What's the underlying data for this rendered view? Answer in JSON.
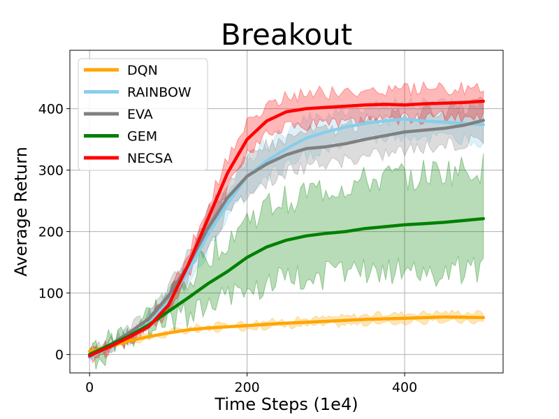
{
  "chart_data": {
    "type": "line",
    "title": "Breakout",
    "xlabel": "Time Steps (1e4)",
    "ylabel": "Average Return",
    "xlim": [
      -25,
      525
    ],
    "ylim": [
      -30,
      495
    ],
    "xticks": [
      0,
      200,
      400
    ],
    "yticks": [
      0,
      100,
      200,
      300,
      400
    ],
    "grid": true,
    "legend_position": "top-left",
    "series": [
      {
        "name": "DQN",
        "color": "#ffa500",
        "x": [
          0,
          25,
          50,
          75,
          100,
          125,
          150,
          175,
          200,
          250,
          300,
          350,
          400,
          450,
          500
        ],
        "mean": [
          5,
          13,
          22,
          29,
          35,
          40,
          43,
          45,
          47,
          51,
          54,
          57,
          59,
          61,
          60
        ],
        "lower": [
          3,
          11,
          20,
          26,
          32,
          36,
          39,
          41,
          43,
          46,
          48,
          50,
          52,
          54,
          53
        ],
        "upper": [
          7,
          15,
          24,
          32,
          38,
          44,
          47,
          50,
          52,
          56,
          60,
          64,
          67,
          69,
          68
        ]
      },
      {
        "name": "RAINBOW",
        "color": "#87ceeb",
        "x": [
          0,
          25,
          50,
          75,
          100,
          125,
          150,
          175,
          200,
          225,
          250,
          275,
          300,
          325,
          350,
          375,
          400,
          425,
          450,
          475,
          500
        ],
        "mean": [
          -5,
          12,
          30,
          50,
          85,
          135,
          195,
          245,
          290,
          315,
          335,
          352,
          362,
          370,
          376,
          380,
          383,
          380,
          378,
          376,
          374
        ],
        "lower": [
          -8,
          9,
          25,
          42,
          74,
          118,
          172,
          220,
          262,
          288,
          308,
          325,
          335,
          343,
          349,
          353,
          356,
          353,
          351,
          350,
          348
        ],
        "upper": [
          -2,
          15,
          35,
          58,
          96,
          152,
          218,
          270,
          318,
          342,
          362,
          380,
          390,
          398,
          404,
          408,
          411,
          408,
          406,
          404,
          402
        ]
      },
      {
        "name": "EVA",
        "color": "#808080",
        "x": [
          0,
          25,
          50,
          75,
          100,
          125,
          150,
          175,
          200,
          225,
          250,
          275,
          300,
          325,
          350,
          375,
          400,
          425,
          450,
          475,
          500
        ],
        "mean": [
          -3,
          15,
          35,
          58,
          95,
          145,
          205,
          255,
          290,
          310,
          325,
          335,
          338,
          343,
          350,
          356,
          362,
          365,
          368,
          373,
          381
        ],
        "lower": [
          -6,
          12,
          30,
          50,
          82,
          125,
          180,
          228,
          262,
          282,
          297,
          307,
          310,
          315,
          322,
          328,
          334,
          337,
          340,
          345,
          353
        ],
        "upper": [
          0,
          18,
          40,
          66,
          108,
          165,
          230,
          282,
          318,
          338,
          353,
          363,
          366,
          371,
          378,
          384,
          390,
          393,
          396,
          401,
          409
        ]
      },
      {
        "name": "GEM",
        "color": "#008000",
        "x": [
          0,
          25,
          50,
          75,
          100,
          125,
          150,
          175,
          200,
          225,
          250,
          275,
          300,
          325,
          350,
          375,
          400,
          425,
          450,
          475,
          500
        ],
        "mean": [
          0,
          15,
          30,
          48,
          70,
          92,
          115,
          135,
          158,
          175,
          186,
          193,
          197,
          200,
          205,
          208,
          211,
          213,
          215,
          218,
          221
        ],
        "lower": [
          -3,
          10,
          22,
          35,
          52,
          66,
          82,
          96,
          108,
          116,
          122,
          128,
          130,
          132,
          133,
          134,
          135,
          135,
          136,
          136,
          136
        ],
        "upper": [
          3,
          20,
          38,
          62,
          92,
          125,
          160,
          190,
          218,
          238,
          252,
          262,
          268,
          274,
          280,
          285,
          290,
          293,
          296,
          299,
          302
        ]
      },
      {
        "name": "NECSA",
        "color": "#ff0000",
        "x": [
          0,
          25,
          50,
          75,
          100,
          125,
          150,
          175,
          200,
          225,
          250,
          275,
          300,
          325,
          350,
          375,
          400,
          425,
          450,
          475,
          500
        ],
        "mean": [
          -2,
          12,
          28,
          45,
          80,
          145,
          220,
          295,
          350,
          380,
          395,
          400,
          402,
          404,
          406,
          407,
          406,
          408,
          409,
          410,
          412
        ],
        "lower": [
          -5,
          8,
          22,
          38,
          68,
          128,
          198,
          270,
          325,
          355,
          370,
          375,
          378,
          380,
          382,
          383,
          382,
          384,
          386,
          387,
          389
        ],
        "upper": [
          1,
          16,
          34,
          52,
          92,
          162,
          242,
          320,
          375,
          405,
          420,
          425,
          426,
          428,
          430,
          431,
          430,
          432,
          432,
          433,
          435
        ]
      }
    ]
  }
}
